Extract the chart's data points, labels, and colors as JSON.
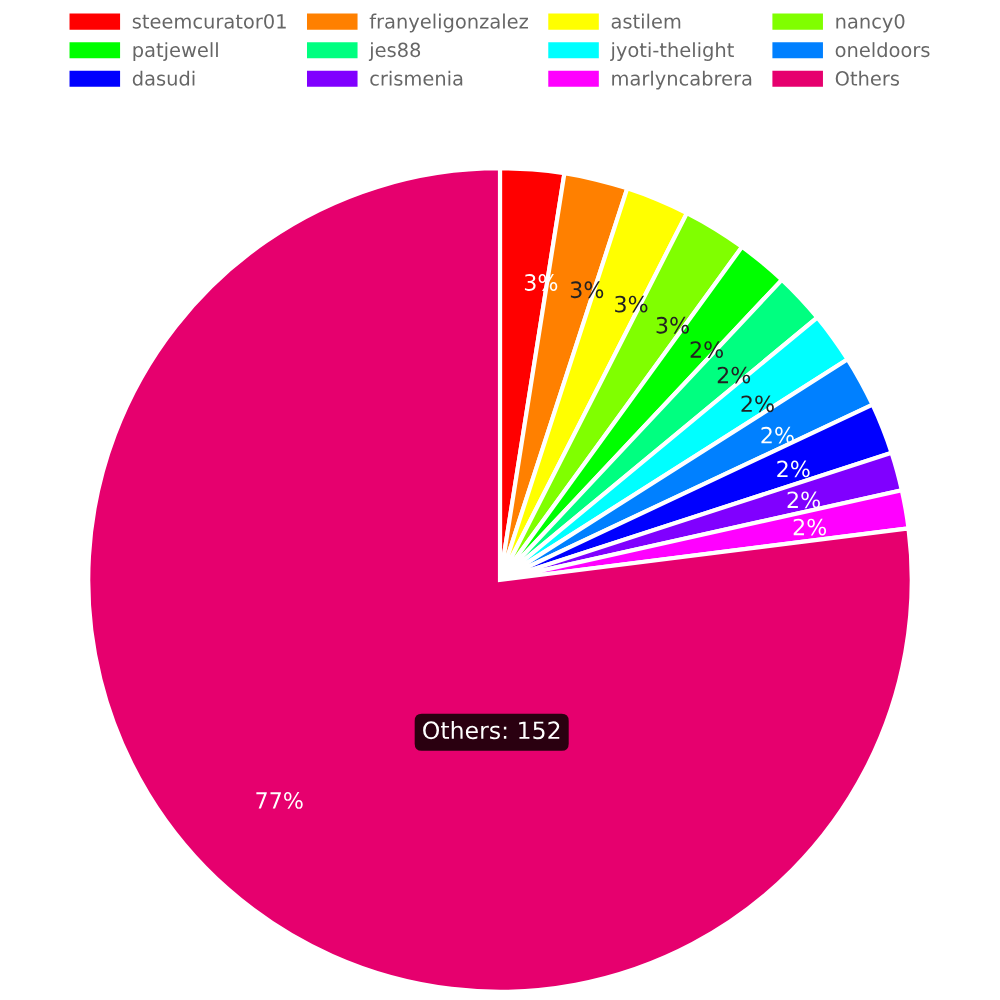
{
  "chart_data": {
    "type": "pie",
    "categories": [
      "steemcurator01",
      "franyeligonzalez",
      "astilem",
      "nancy0",
      "patjewell",
      "jes88",
      "jyoti-thelight",
      "oneldoors",
      "dasudi",
      "crismenia",
      "marlyncabrera",
      "Others"
    ],
    "values": [
      2.5,
      2.5,
      2.5,
      2.5,
      2,
      2,
      2,
      2,
      2,
      1.5,
      1.5,
      77
    ],
    "value_labels": [
      "3%",
      "3%",
      "3%",
      "3%",
      "2%",
      "2%",
      "2%",
      "2%",
      "2%",
      "2%",
      "2%",
      "77%"
    ],
    "colors": [
      "#ff0000",
      "#ff8000",
      "#ffff00",
      "#80ff00",
      "#00ff00",
      "#00ff80",
      "#00ffff",
      "#0080ff",
      "#0000ff",
      "#8000ff",
      "#ff00ff",
      "#e6006e"
    ],
    "annotations": [
      "Others: 152"
    ],
    "legend": "top"
  }
}
